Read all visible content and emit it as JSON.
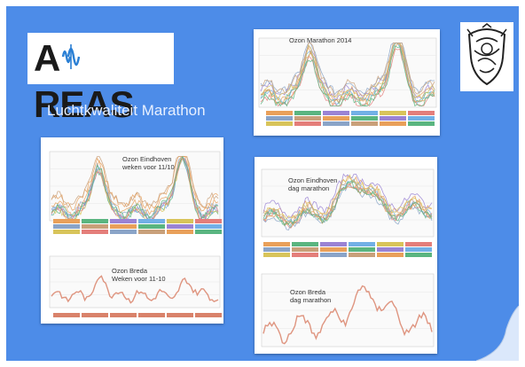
{
  "slide": {
    "logo": {
      "text_a": "A",
      "text_rest": "REAS"
    },
    "emblem_icon": "city-crest-emblem",
    "title": "Luchtkwaliteit Marathon"
  },
  "panels": [
    {
      "key": "marathon2014",
      "label_lines": [
        "Ozon Marathon 2014"
      ],
      "legend_rows": 3
    },
    {
      "key": "eindhoven_weken",
      "label_lines": [
        "Ozon Eindhoven",
        "weken voor 11/10"
      ],
      "legend_rows": 3
    },
    {
      "key": "breda_weken",
      "label_lines": [
        "Ozon Breda",
        "Weken voor 11-10"
      ],
      "legend_rows": 1
    },
    {
      "key": "eindhoven_dag",
      "label_lines": [
        "Ozon Eindhoven",
        "dag marathon"
      ],
      "legend_rows": 3
    },
    {
      "key": "breda_dag",
      "label_lines": [
        "Ozon Breda",
        "dag marathon"
      ],
      "legend_rows": 0
    }
  ],
  "colors": {
    "slide_bg": "#4d8ce8",
    "series": [
      "#e9a05a",
      "#5ab580",
      "#9a83d4",
      "#72b0e6",
      "#d8c45a",
      "#e47e7a",
      "#8aa4c8",
      "#c9a07a"
    ],
    "breda_line": "#d9826a"
  }
}
